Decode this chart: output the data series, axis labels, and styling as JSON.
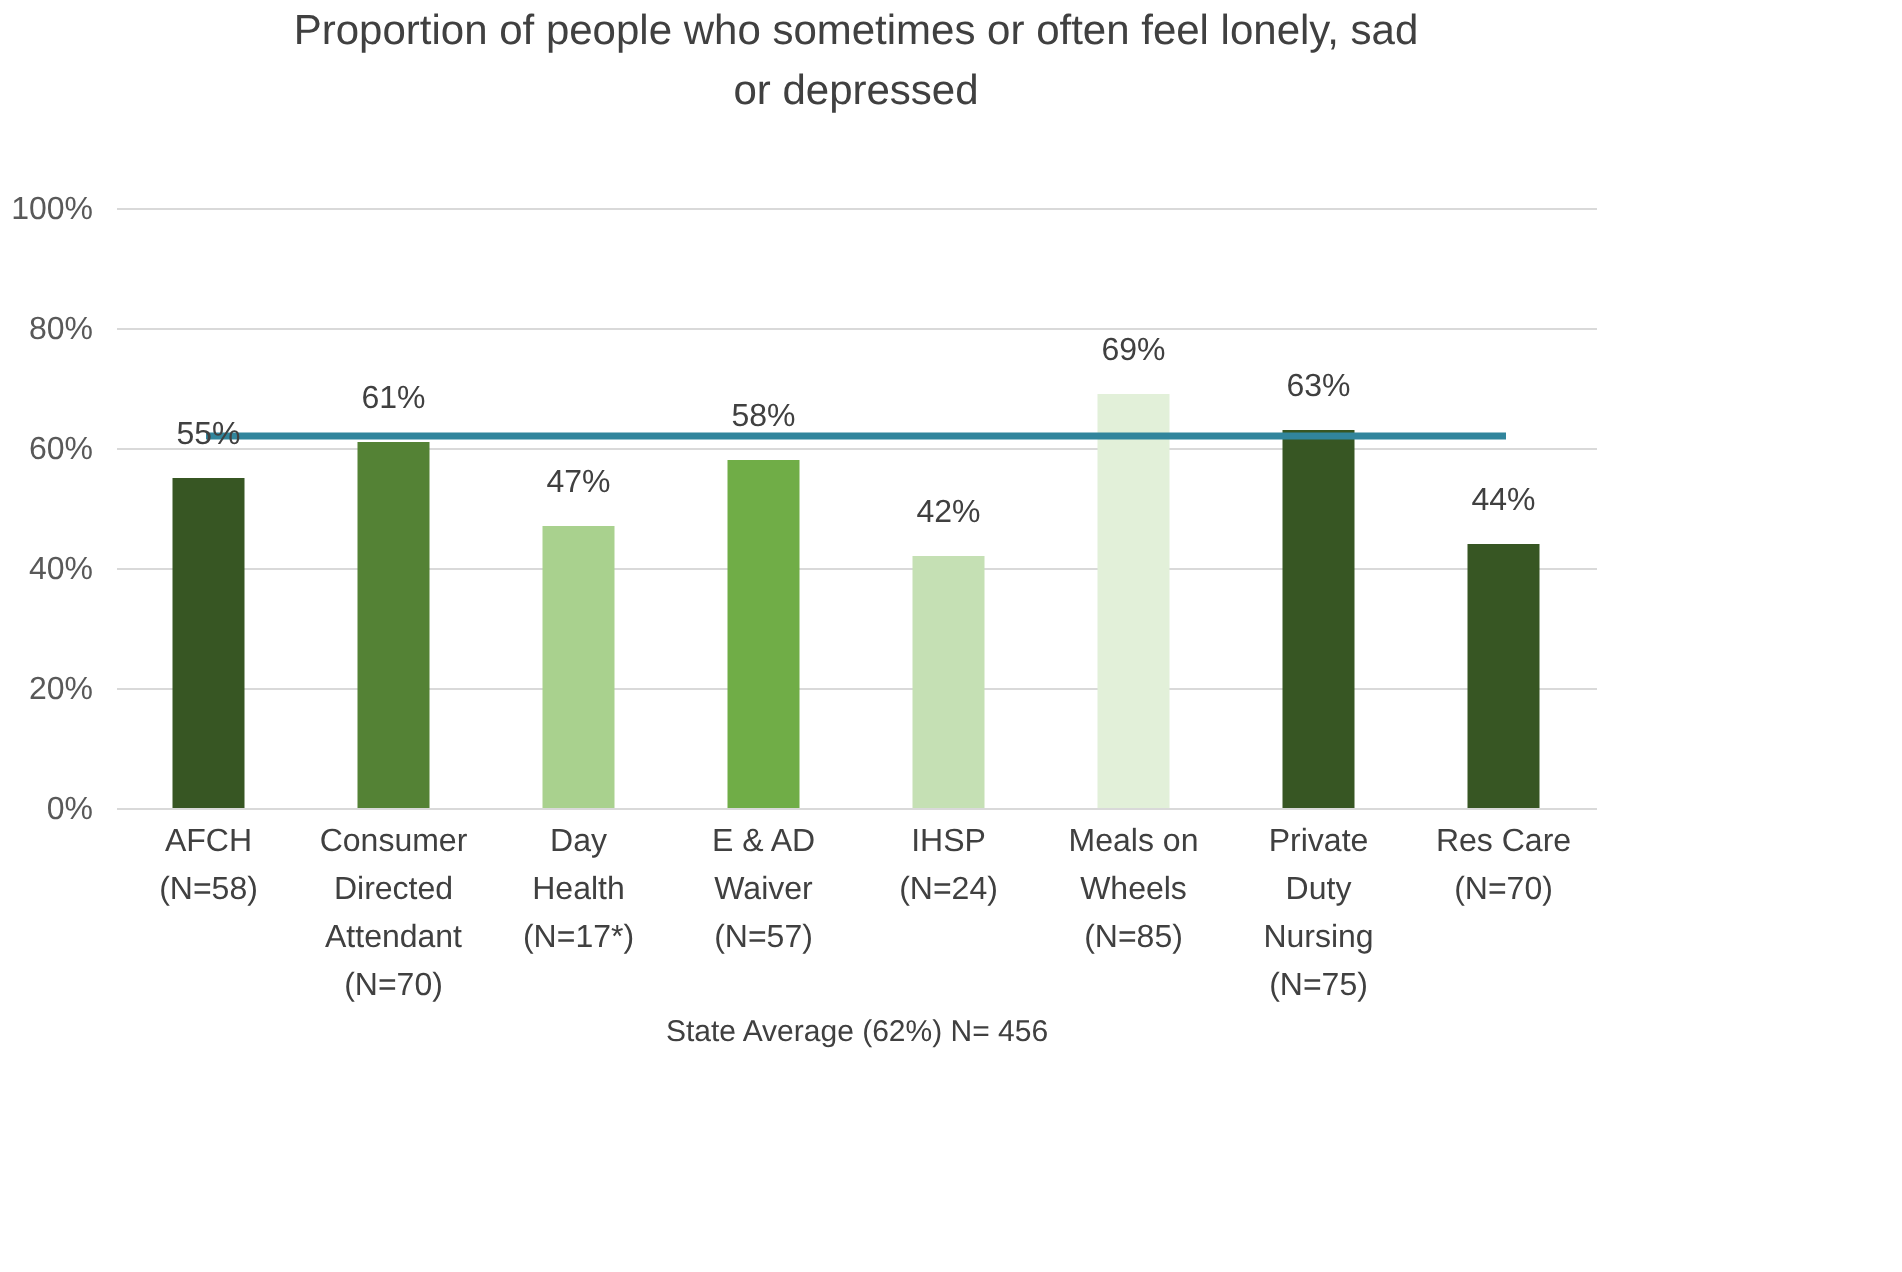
{
  "chart_data": {
    "type": "bar",
    "title": "Proportion of people who sometimes or often feel lonely, sad or depressed",
    "xlabel": "State Average (62%) N= 456",
    "categories": [
      "AFCH (N=58)",
      "Consumer Directed Attendant (N=70)",
      "Day Health (N=17*)",
      "E & AD Waiver (N=57)",
      "IHSP (N=24)",
      "Meals on Wheels (N=85)",
      "Private Duty Nursing (N=75)",
      "Res Care (N=70)"
    ],
    "values": [
      55,
      61,
      47,
      58,
      42,
      69,
      63,
      44
    ],
    "value_labels": [
      "55%",
      "61%",
      "47%",
      "58%",
      "42%",
      "69%",
      "63%",
      "44%"
    ],
    "colors": [
      "#375623",
      "#548235",
      "#a9d18e",
      "#70ad47",
      "#c5e0b4",
      "#e2f0d9",
      "#375623",
      "#375623"
    ],
    "ylim": [
      0,
      100
    ],
    "yticks": [
      {
        "value": 0,
        "label": "0%"
      },
      {
        "value": 20,
        "label": "20%"
      },
      {
        "value": 40,
        "label": "40%"
      },
      {
        "value": 60,
        "label": "60%"
      },
      {
        "value": 80,
        "label": "80%"
      },
      {
        "value": 100,
        "label": "100%"
      }
    ],
    "ref_lines": [
      {
        "axis": "y",
        "value": 62,
        "color": "#31859c"
      }
    ],
    "grid": "y"
  }
}
